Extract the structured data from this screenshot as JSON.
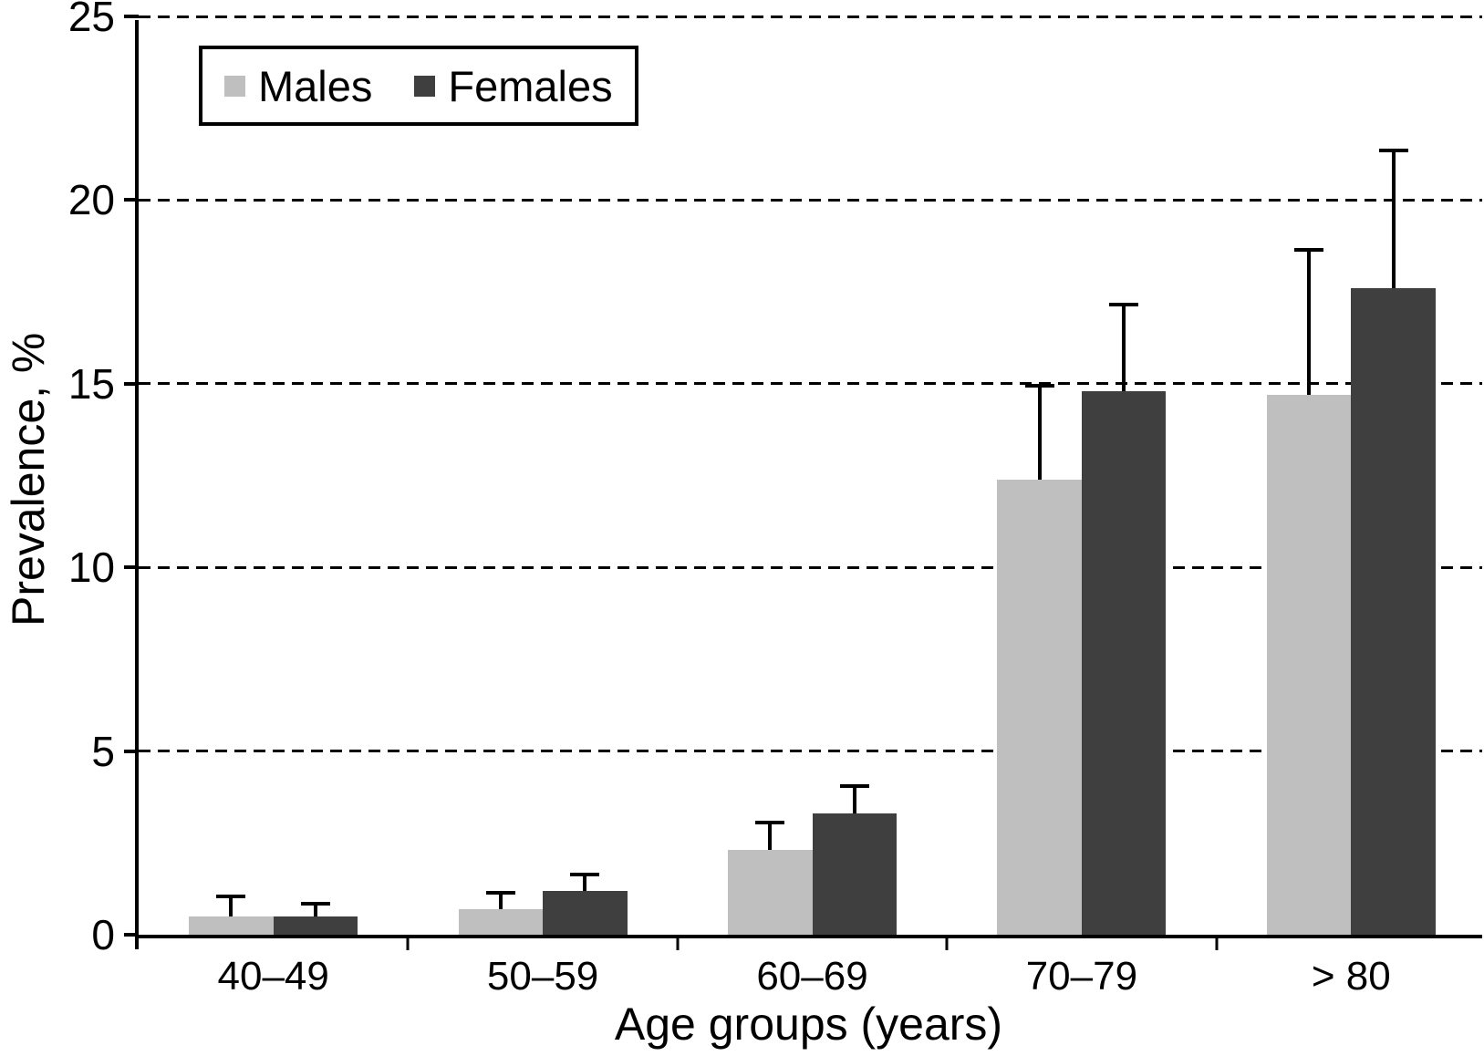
{
  "chart_data": {
    "type": "bar",
    "title": "",
    "xlabel": "Age groups (years)",
    "ylabel": "Prevalence, %",
    "categories": [
      "40–49",
      "50–59",
      "60–69",
      "70–79",
      "> 80"
    ],
    "series": [
      {
        "name": "Males",
        "color": "#bfbfbf",
        "values": [
          0.5,
          0.7,
          2.3,
          12.4,
          14.7
        ],
        "error_tops": [
          1.1,
          1.2,
          3.1,
          15.0,
          18.7
        ]
      },
      {
        "name": "Females",
        "color": "#3f3f3f",
        "values": [
          0.5,
          1.2,
          3.3,
          14.8,
          17.6
        ],
        "error_tops": [
          0.9,
          1.7,
          4.1,
          17.2,
          21.4
        ]
      }
    ],
    "ylim": [
      0,
      25
    ],
    "yticks": [
      0,
      5,
      10,
      15,
      20,
      25
    ],
    "grid": "dashed-horizontal",
    "legend_position": "top-left",
    "error_bars": "upper-only",
    "axis_color": "#000000",
    "background_color": "#ffffff"
  }
}
